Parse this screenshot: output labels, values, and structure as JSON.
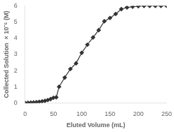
{
  "chart_data": {
    "type": "line",
    "x": [
      0,
      5,
      10,
      15,
      20,
      25,
      30,
      35,
      40,
      45,
      50,
      55,
      60,
      70,
      80,
      90,
      100,
      110,
      120,
      130,
      140,
      150,
      160,
      170,
      180,
      190,
      200,
      210,
      220,
      230,
      240,
      250
    ],
    "values": [
      0.0,
      0.01,
      0.02,
      0.03,
      0.05,
      0.07,
      0.1,
      0.13,
      0.18,
      0.24,
      0.32,
      0.35,
      1.0,
      1.57,
      2.1,
      2.45,
      3.1,
      3.6,
      4.05,
      4.5,
      5.05,
      5.25,
      5.5,
      5.8,
      5.9,
      5.95,
      5.98,
      6.0,
      6.0,
      6.0,
      6.0,
      6.0
    ],
    "xlabel": "Eluted Volume (mL)",
    "ylabel": "Collected Solution  × 10⁻⁵ (M)",
    "xlim": [
      0,
      250
    ],
    "ylim": [
      0,
      6
    ],
    "xticks": [
      0,
      50,
      100,
      150,
      200,
      250
    ],
    "yticks": [
      0,
      1,
      2,
      3,
      4,
      5,
      6
    ],
    "color": "#333333",
    "marker": "diamond",
    "grid": false,
    "legend": false
  }
}
